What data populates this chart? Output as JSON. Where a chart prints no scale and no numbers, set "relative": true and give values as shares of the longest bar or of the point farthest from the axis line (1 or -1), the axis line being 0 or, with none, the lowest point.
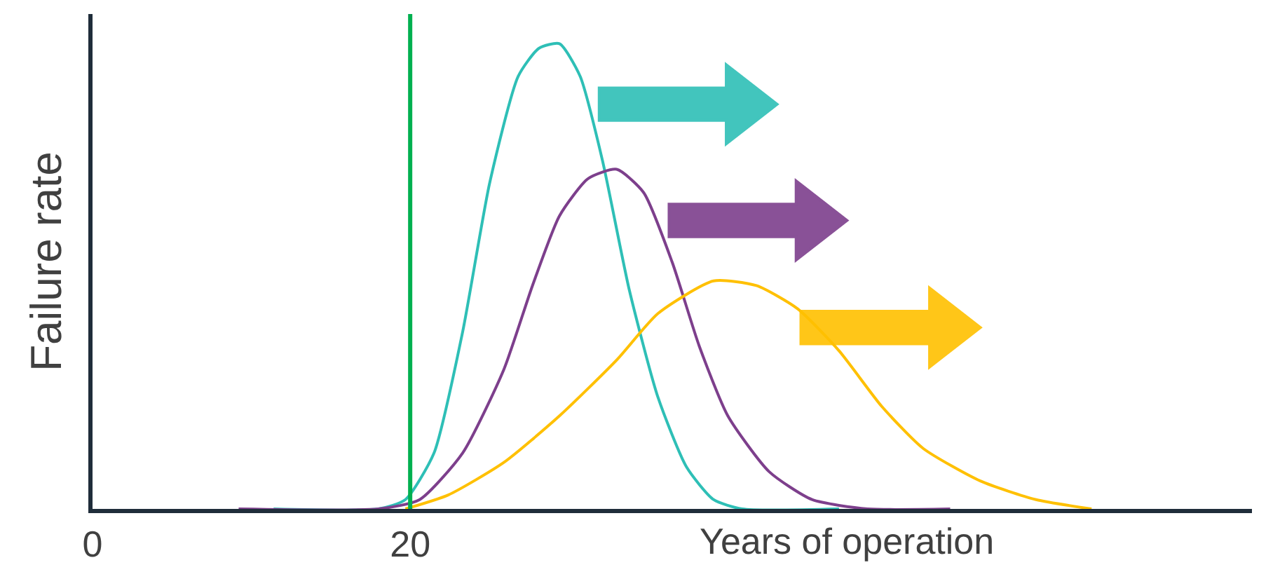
{
  "chart_data": {
    "type": "line",
    "relative": true,
    "xlabel": "Years of operation",
    "ylabel": "Failure rate",
    "xlim": [
      0,
      73
    ],
    "xticks": [
      0,
      20
    ],
    "legend": false,
    "marker": "none",
    "line_style": "solid",
    "series": [
      {
        "color": "#2ebfb6",
        "x": [
          11.4,
          18,
          19.7,
          21.5,
          23.3,
          25,
          26.8,
          28.1,
          29.4,
          30.7,
          32.1,
          33.8,
          35.6,
          37.4,
          39.1,
          40.9,
          47
        ],
        "values": [
          0,
          0,
          0.02,
          0.12,
          0.38,
          0.7,
          0.93,
          0.99,
          1,
          0.93,
          0.75,
          0.47,
          0.24,
          0.09,
          0.02,
          0,
          0
        ]
      },
      {
        "color": "#7d3f8c",
        "x": [
          9.2,
          18,
          20.6,
          23.3,
          25.9,
          27.7,
          29.4,
          31.2,
          33,
          34.7,
          36.5,
          38.2,
          40,
          42.6,
          45.3,
          48.8,
          54
        ],
        "values": [
          0,
          0,
          0.02,
          0.12,
          0.3,
          0.48,
          0.63,
          0.71,
          0.73,
          0.68,
          0.53,
          0.35,
          0.2,
          0.08,
          0.02,
          0,
          0
        ]
      },
      {
        "color": "#ffc000",
        "x": [
          19.7,
          22.4,
          25.9,
          29.4,
          33,
          35.6,
          39.1,
          41.8,
          44.4,
          47,
          49.7,
          52.3,
          55.9,
          59.4,
          62.9
        ],
        "values": [
          0,
          0.03,
          0.1,
          0.2,
          0.32,
          0.42,
          0.49,
          0.48,
          0.43,
          0.34,
          0.22,
          0.13,
          0.06,
          0.02,
          0
        ]
      }
    ],
    "ref_lines": [
      {
        "axis": "x",
        "value": 20,
        "color": "#00b050"
      }
    ]
  }
}
